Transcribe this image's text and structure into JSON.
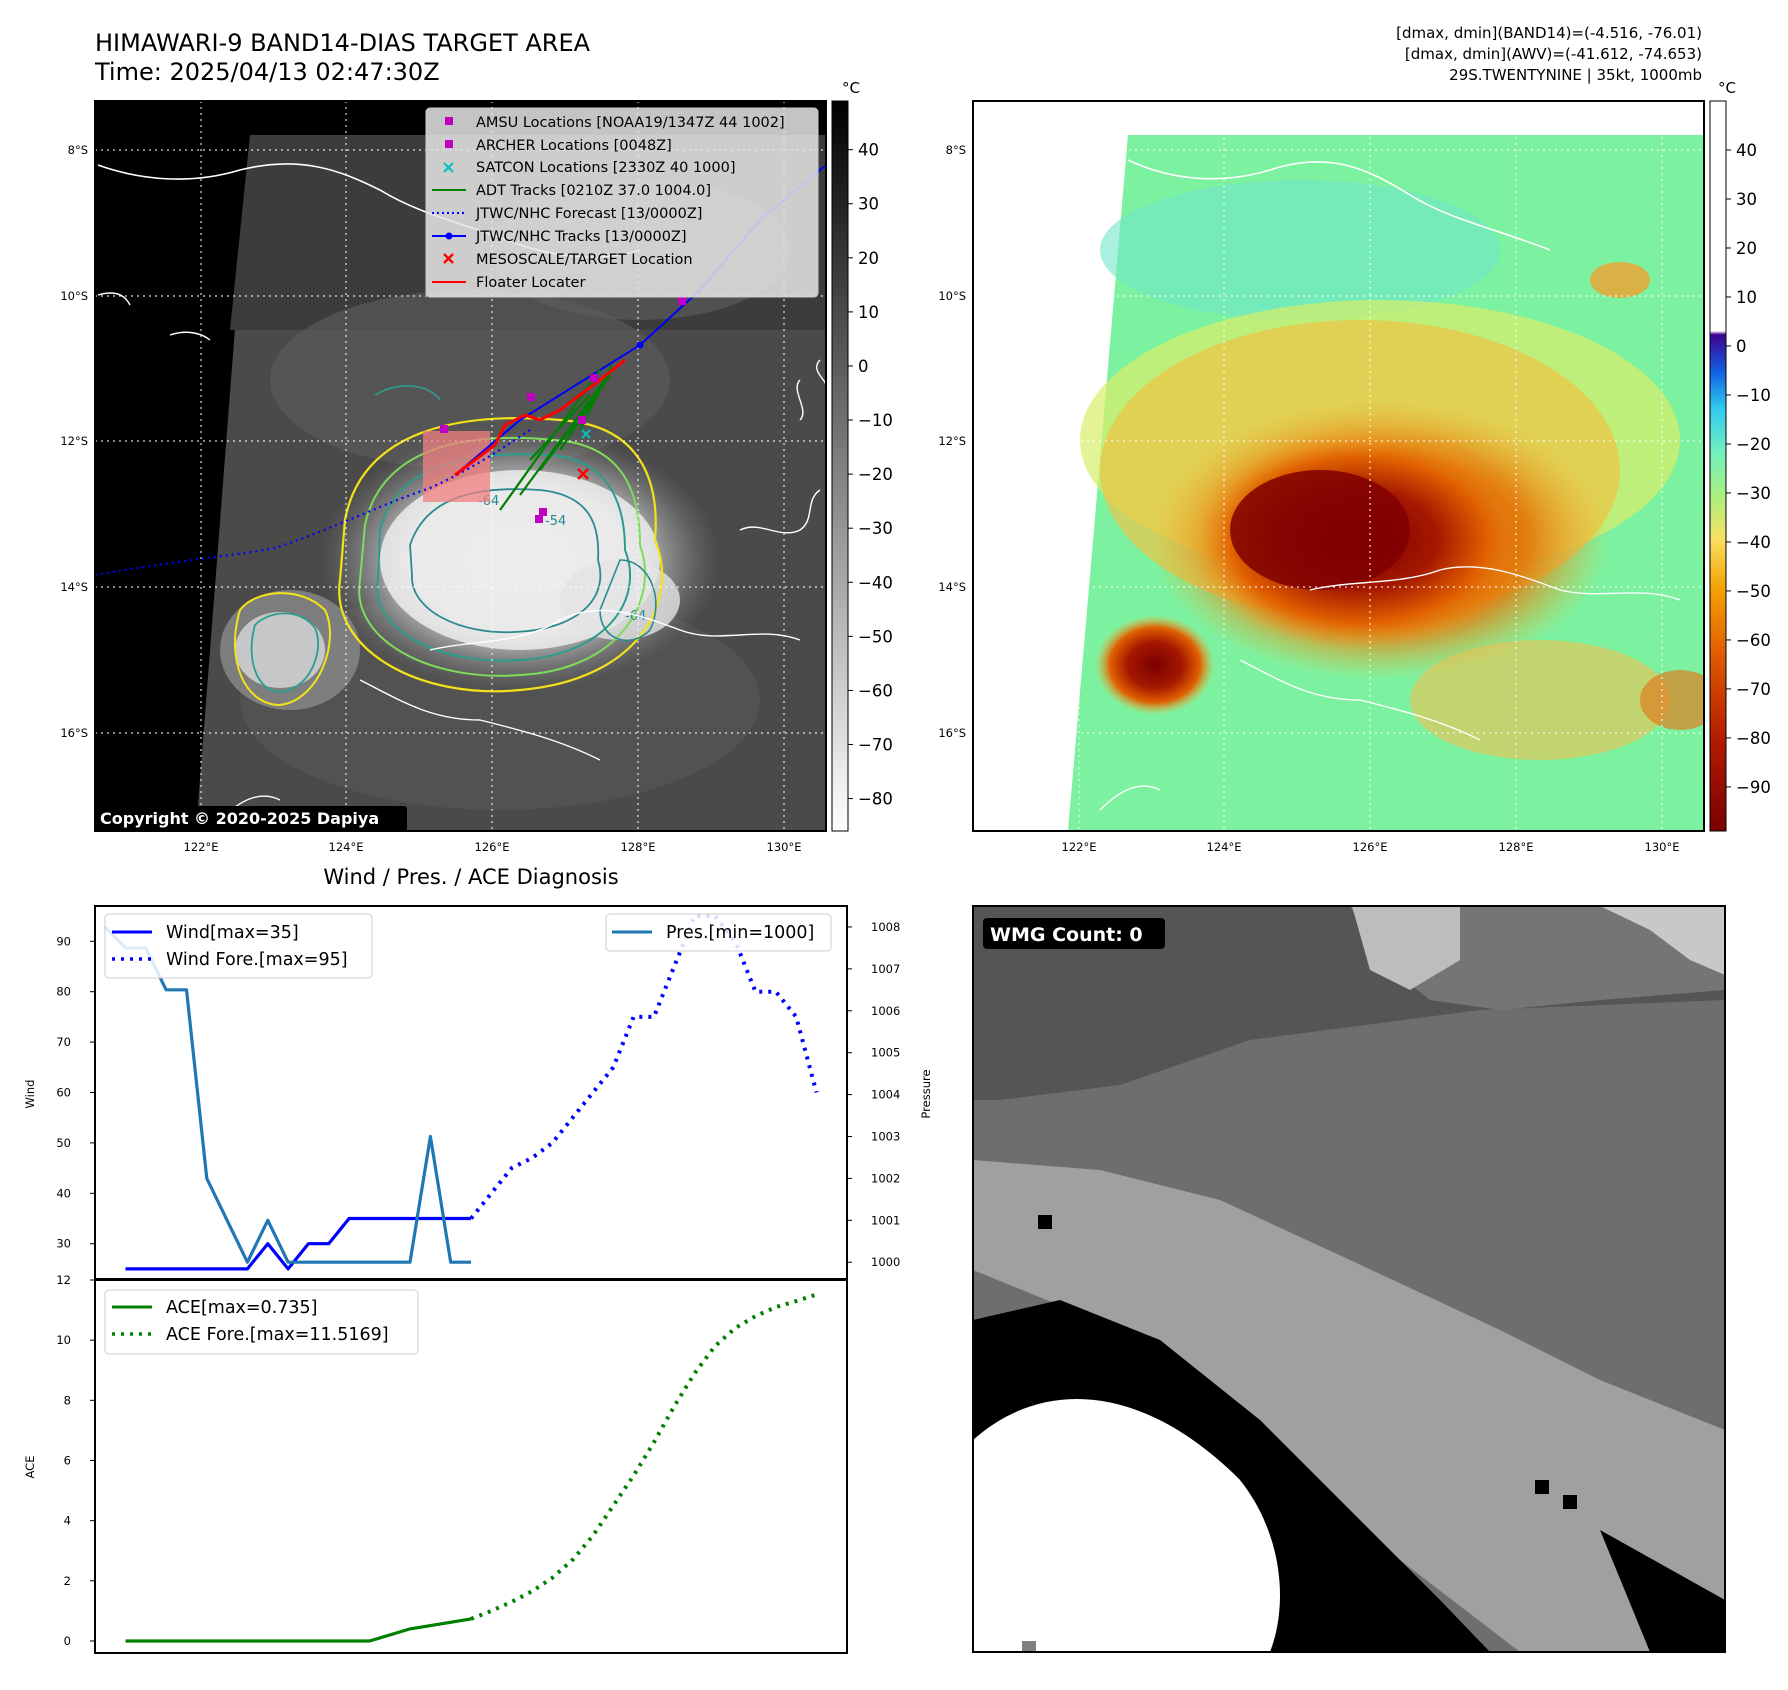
{
  "header": {
    "title": "HIMAWARI-9 BAND14-DIAS TARGET AREA",
    "time": "Time: 2025/04/13 02:47:30Z",
    "info_line1": "[dmax, dmin](BAND14)=(-4.516, -76.01)",
    "info_line2": "[dmax, dmin](AWV)=(-41.612, -74.653)",
    "info_line3": "29S.TWENTYNINE | 35kt, 1000mb"
  },
  "map": {
    "lat_labels": [
      "8°S",
      "10°S",
      "12°S",
      "14°S",
      "16°S"
    ],
    "lon_labels": [
      "122°E",
      "124°E",
      "126°E",
      "128°E",
      "130°E"
    ],
    "copyright": "Copyright © 2020-2025 Dapiya",
    "legend": [
      {
        "label": "AMSU Locations [NOAA19/1347Z 44 1002]",
        "marker": "square",
        "color": "#c000c0"
      },
      {
        "label": "ARCHER Locations [0048Z]",
        "marker": "square",
        "color": "#c000c0"
      },
      {
        "label": "SATCON Locations [2330Z 40 1000]",
        "marker": "x",
        "color": "#00c0c0"
      },
      {
        "label": "ADT Tracks [0210Z 37.0 1004.0]",
        "marker": "line",
        "color": "#008000"
      },
      {
        "label": "JTWC/NHC Forecast [13/0000Z]",
        "marker": "dotted",
        "color": "#0000ff"
      },
      {
        "label": "JTWC/NHC Tracks [13/0000Z]",
        "marker": "line-dot",
        "color": "#0000ff"
      },
      {
        "label": "MESOSCALE/TARGET Location",
        "marker": "x",
        "color": "#ff0000"
      },
      {
        "label": "Floater Locater",
        "marker": "line",
        "color": "#ff0000"
      }
    ],
    "contour_labels": [
      "-64",
      "-54",
      "-64"
    ]
  },
  "colorbar_gray": {
    "unit": "°C",
    "ticks": [
      "40",
      "30",
      "20",
      "10",
      "0",
      "−10",
      "−20",
      "−30",
      "−40",
      "−50",
      "−60",
      "−70",
      "−80"
    ]
  },
  "colorbar_color": {
    "unit": "°C",
    "ticks": [
      "40",
      "30",
      "20",
      "10",
      "0",
      "−10",
      "−20",
      "−30",
      "−40",
      "−50",
      "−60",
      "−70",
      "−80",
      "−90"
    ]
  },
  "wmg": {
    "label": "WMG Count: 0"
  },
  "chart_data": [
    {
      "type": "line",
      "title": "Wind / Pres. / ACE Diagnosis",
      "ylabel": "Wind",
      "ylabel_right": "Pressure",
      "ylim": [
        23,
        97
      ],
      "ylim_right": [
        999.6,
        1008.5
      ],
      "yticks": [
        30,
        40,
        50,
        60,
        70,
        80,
        90
      ],
      "yticks_right": [
        1000,
        1001,
        1002,
        1003,
        1004,
        1005,
        1006,
        1007,
        1008
      ],
      "x_index_range": [
        -1.5,
        35.5
      ],
      "series": [
        {
          "name": "Wind[max=35]",
          "axis": "left",
          "style": "solid",
          "color": "#0000ff",
          "x": [
            0,
            1,
            2,
            3,
            4,
            5,
            6,
            7,
            8,
            9,
            10,
            11,
            12,
            13,
            14,
            15,
            16,
            17
          ],
          "values": [
            25,
            25,
            25,
            25,
            25,
            25,
            25,
            30,
            25,
            30,
            30,
            35,
            35,
            35,
            35,
            35,
            35,
            35
          ]
        },
        {
          "name": "Wind Fore.[max=95]",
          "axis": "left",
          "style": "dotted",
          "color": "#0000ff",
          "x": [
            17,
            18,
            19,
            20,
            21,
            22,
            23,
            24,
            25,
            26,
            27,
            28,
            29,
            30,
            31,
            32,
            33,
            34
          ],
          "values": [
            35,
            40,
            45,
            47,
            50,
            55,
            60,
            65,
            75,
            75,
            85,
            95,
            95,
            90,
            80,
            80,
            75,
            60
          ]
        },
        {
          "name": "Pres.[min=1000]",
          "axis": "right",
          "style": "solid",
          "color": "#1f77b4",
          "x": [
            -1,
            0,
            1,
            2,
            3,
            4,
            5,
            6,
            7,
            8,
            9,
            10,
            11,
            12,
            13,
            14,
            15,
            16,
            17
          ],
          "values": [
            1008,
            1007.5,
            1007.5,
            1006.5,
            1006.5,
            1002,
            1001,
            1000,
            1001,
            1000,
            1000,
            1000,
            1000,
            1000,
            1000,
            1000,
            1003,
            1000,
            1000
          ]
        }
      ]
    },
    {
      "type": "line",
      "ylabel": "ACE",
      "ylim": [
        -0.4,
        12
      ],
      "yticks": [
        0,
        2,
        4,
        6,
        8,
        10,
        12
      ],
      "x_index_range": [
        -1.5,
        35.5
      ],
      "series": [
        {
          "name": "ACE[max=0.735]",
          "style": "solid",
          "color": "#008000",
          "x": [
            0,
            4,
            8,
            9,
            12,
            13,
            14,
            17
          ],
          "values": [
            0,
            0,
            0,
            0,
            0,
            0.2,
            0.4,
            0.735
          ]
        },
        {
          "name": "ACE Fore.[max=11.5169]",
          "style": "dotted",
          "color": "#008000",
          "x": [
            17,
            18,
            19,
            20,
            21,
            22,
            23,
            24,
            25,
            26,
            27,
            28,
            29,
            30,
            31,
            32,
            33,
            34
          ],
          "values": [
            0.735,
            1.0,
            1.3,
            1.65,
            2.1,
            2.7,
            3.5,
            4.5,
            5.5,
            6.6,
            7.8,
            8.9,
            9.8,
            10.4,
            10.8,
            11.1,
            11.3,
            11.5169
          ]
        }
      ]
    }
  ]
}
